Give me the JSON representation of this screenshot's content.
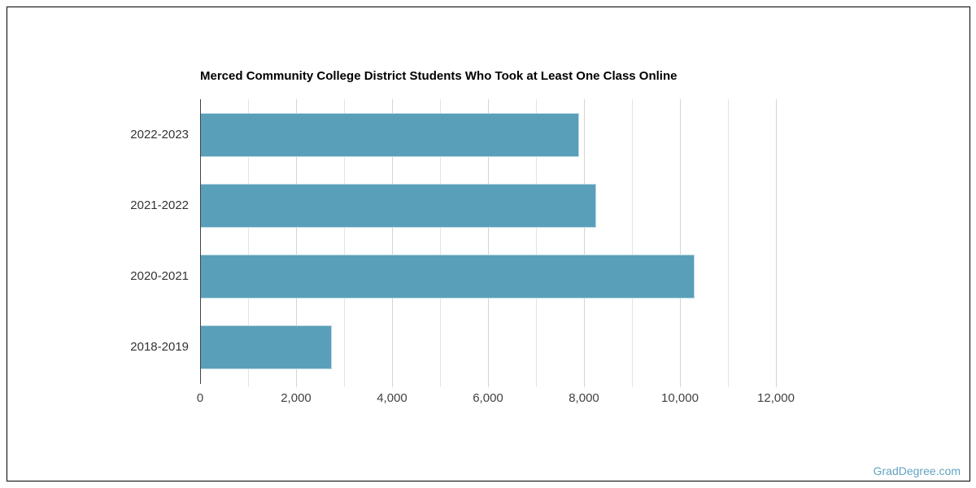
{
  "page": {
    "watermark": "GradDegree.com",
    "background": "#ffffff",
    "border_color": "#000000"
  },
  "chart_data": {
    "type": "bar",
    "orientation": "horizontal",
    "title": "Merced Community College District Students Who Took at Least One Class Online",
    "categories": [
      "2022-2023",
      "2021-2022",
      "2020-2021",
      "2018-2019"
    ],
    "values": [
      7900,
      8250,
      10300,
      2750
    ],
    "xlabel": "",
    "ylabel": "",
    "xlim": [
      0,
      13000
    ],
    "x_tick_step": 2000,
    "x_tick_labels": [
      "0",
      "2,000",
      "4,000",
      "6,000",
      "8,000",
      "10,000",
      "12,000"
    ],
    "gridline_step": 1000,
    "grid": true,
    "legend": false,
    "value_labels": false,
    "colors": {
      "bar": "#5A9FBA",
      "bar_edge": "#B9D7E2",
      "gridline_minor": "#E4E4E4",
      "gridline_major": "#D4D4D4",
      "axis_line": "#424242",
      "tick_label": "#424242",
      "category_label": "#333333",
      "title": "#000000",
      "watermark": "#62A3C1"
    }
  }
}
